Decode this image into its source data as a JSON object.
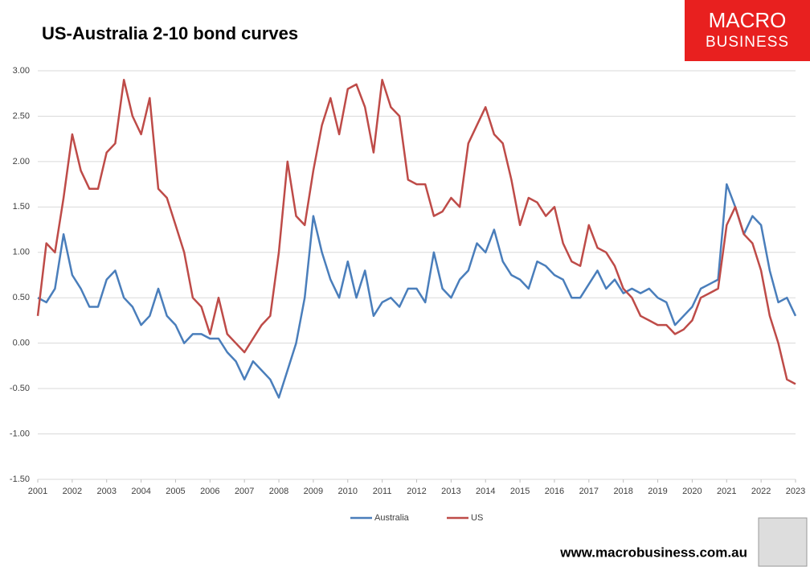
{
  "chart_data": {
    "type": "line",
    "title": "US-Australia 2-10 bond curves",
    "brand": [
      "MACRO",
      "BUSINESS"
    ],
    "footer": "www.macrobusiness.com.au",
    "x": [
      2001,
      2001.25,
      2001.5,
      2001.75,
      2002,
      2002.25,
      2002.5,
      2002.75,
      2003,
      2003.25,
      2003.5,
      2003.75,
      2004,
      2004.25,
      2004.5,
      2004.75,
      2005,
      2005.25,
      2005.5,
      2005.75,
      2006,
      2006.25,
      2006.5,
      2006.75,
      2007,
      2007.25,
      2007.5,
      2007.75,
      2008,
      2008.25,
      2008.5,
      2008.75,
      2009,
      2009.25,
      2009.5,
      2009.75,
      2010,
      2010.25,
      2010.5,
      2010.75,
      2011,
      2011.25,
      2011.5,
      2011.75,
      2012,
      2012.25,
      2012.5,
      2012.75,
      2013,
      2013.25,
      2013.5,
      2013.75,
      2014,
      2014.25,
      2014.5,
      2014.75,
      2015,
      2015.25,
      2015.5,
      2015.75,
      2016,
      2016.25,
      2016.5,
      2016.75,
      2017,
      2017.25,
      2017.5,
      2017.75,
      2018,
      2018.25,
      2018.5,
      2018.75,
      2019,
      2019.25,
      2019.5,
      2019.75,
      2020,
      2020.25,
      2020.5,
      2020.75,
      2021,
      2021.25,
      2021.5,
      2021.75,
      2022,
      2022.25,
      2022.5,
      2022.75,
      2023
    ],
    "series": [
      {
        "name": "Australia",
        "color": "#4a7ebb",
        "values": [
          0.5,
          0.45,
          0.6,
          1.2,
          0.75,
          0.6,
          0.4,
          0.4,
          0.7,
          0.8,
          0.5,
          0.4,
          0.2,
          0.3,
          0.6,
          0.3,
          0.2,
          0.0,
          0.1,
          0.1,
          0.05,
          0.05,
          -0.1,
          -0.2,
          -0.4,
          -0.2,
          -0.3,
          -0.4,
          -0.6,
          -0.3,
          0.0,
          0.5,
          1.4,
          1.0,
          0.7,
          0.5,
          0.9,
          0.5,
          0.8,
          0.3,
          0.45,
          0.5,
          0.4,
          0.6,
          0.6,
          0.45,
          1.0,
          0.6,
          0.5,
          0.7,
          0.8,
          1.1,
          1.0,
          1.25,
          0.9,
          0.75,
          0.7,
          0.6,
          0.9,
          0.85,
          0.75,
          0.7,
          0.5,
          0.5,
          0.65,
          0.8,
          0.6,
          0.7,
          0.55,
          0.6,
          0.55,
          0.6,
          0.5,
          0.45,
          0.2,
          0.3,
          0.4,
          0.6,
          0.65,
          0.7,
          1.75,
          1.5,
          1.2,
          1.4,
          1.3,
          0.8,
          0.45,
          0.5,
          0.3
        ]
      },
      {
        "name": "US",
        "color": "#be4b48",
        "values": [
          0.3,
          1.1,
          1.0,
          1.6,
          2.3,
          1.9,
          1.7,
          1.7,
          2.1,
          2.2,
          2.9,
          2.5,
          2.3,
          2.7,
          1.7,
          1.6,
          1.3,
          1.0,
          0.5,
          0.4,
          0.1,
          0.5,
          0.1,
          0.0,
          -0.1,
          0.05,
          0.2,
          0.3,
          1.0,
          2.0,
          1.4,
          1.3,
          1.9,
          2.4,
          2.7,
          2.3,
          2.8,
          2.85,
          2.6,
          2.1,
          2.9,
          2.6,
          2.5,
          1.8,
          1.75,
          1.75,
          1.4,
          1.45,
          1.6,
          1.5,
          2.2,
          2.4,
          2.6,
          2.3,
          2.2,
          1.8,
          1.3,
          1.6,
          1.55,
          1.4,
          1.5,
          1.1,
          0.9,
          0.85,
          1.3,
          1.05,
          1.0,
          0.85,
          0.6,
          0.5,
          0.3,
          0.25,
          0.2,
          0.2,
          0.1,
          0.15,
          0.25,
          0.5,
          0.55,
          0.6,
          1.3,
          1.5,
          1.2,
          1.1,
          0.8,
          0.3,
          0.0,
          -0.4,
          -0.45
        ]
      }
    ],
    "xlim": [
      2001,
      2023
    ],
    "xticks": [
      2001,
      2002,
      2003,
      2004,
      2005,
      2006,
      2007,
      2008,
      2009,
      2010,
      2011,
      2012,
      2013,
      2014,
      2015,
      2016,
      2017,
      2018,
      2019,
      2020,
      2021,
      2022,
      2023
    ],
    "ylim": [
      -1.5,
      3.0
    ],
    "yticks": [
      {
        "value": -1.5,
        "label": "-1.50"
      },
      {
        "value": -1,
        "label": "-1.00"
      },
      {
        "value": -0.5,
        "label": "-0.50"
      },
      {
        "value": 0,
        "label": "0.00"
      },
      {
        "value": 0.5,
        "label": "0.50"
      },
      {
        "value": 1,
        "label": "1.00"
      },
      {
        "value": 1.5,
        "label": "1.50"
      },
      {
        "value": 2,
        "label": "2.00"
      },
      {
        "value": 2.5,
        "label": "2.50"
      },
      {
        "value": 3,
        "label": "3.00"
      }
    ],
    "grid": true
  }
}
